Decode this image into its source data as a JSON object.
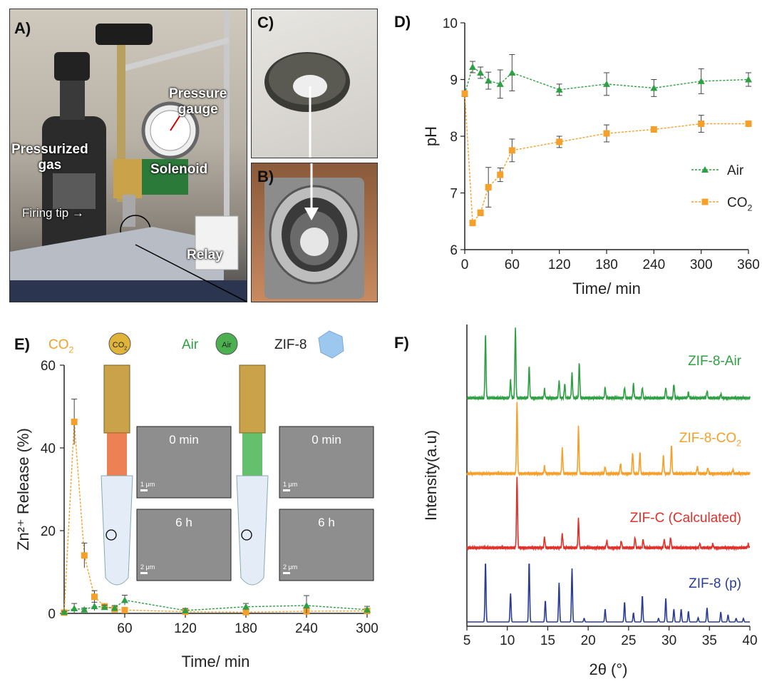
{
  "panels": {
    "A": "A)",
    "B": "B)",
    "C": "C)",
    "D": "D)",
    "E": "E)",
    "F": "F)"
  },
  "photo_a_labels": {
    "pressure_gauge_1": "Pressure",
    "pressure_gauge_2": "gauge",
    "pressurized_1": "Pressurized",
    "pressurized_2": "gas",
    "solenoid": "Solenoid",
    "firing_tip": "Firing tip",
    "relay": "Relay"
  },
  "colors": {
    "air": "#2ea043",
    "co2": "#f5a02a",
    "zif_c": "#e0302a",
    "zif_p": "#2a3c94",
    "zif8_icon": "#9cc8ef"
  },
  "chart_data": [
    {
      "id": "D",
      "type": "line",
      "ylabel": "pH",
      "xlabel": "Time/ min",
      "xlim": [
        0,
        360
      ],
      "ylim": [
        6,
        10
      ],
      "xticks": [
        0,
        60,
        120,
        180,
        240,
        300,
        360
      ],
      "yticks": [
        6,
        7,
        8,
        9,
        10
      ],
      "legend_position": "center-right",
      "series": [
        {
          "name": "Air",
          "marker": "triangle",
          "x": [
            0,
            10,
            20,
            30,
            45,
            60,
            120,
            180,
            240,
            300,
            360
          ],
          "y": [
            8.75,
            9.22,
            9.12,
            8.98,
            8.92,
            9.12,
            8.82,
            8.92,
            8.85,
            8.97,
            9.0
          ],
          "err": [
            0.05,
            0.1,
            0.1,
            0.15,
            0.25,
            0.32,
            0.1,
            0.2,
            0.15,
            0.22,
            0.12
          ]
        },
        {
          "name": "CO2",
          "marker": "square",
          "x": [
            0,
            10,
            20,
            30,
            45,
            60,
            120,
            180,
            240,
            300,
            360
          ],
          "y": [
            8.75,
            6.47,
            6.65,
            7.1,
            7.32,
            7.75,
            7.9,
            8.05,
            8.12,
            8.22,
            8.22
          ],
          "err": [
            0.05,
            0.04,
            0.05,
            0.35,
            0.12,
            0.2,
            0.1,
            0.15,
            0.05,
            0.15,
            0.04
          ]
        }
      ]
    },
    {
      "id": "E",
      "type": "line",
      "ylabel": "Zn²⁺ Release (%)",
      "xlabel": "Time/ min",
      "xlim": [
        0,
        300
      ],
      "ylim": [
        0,
        60
      ],
      "xticks": [
        60,
        120,
        180,
        240,
        300
      ],
      "yticks": [
        0,
        20,
        40,
        60
      ],
      "legend_items": [
        {
          "label": "CO2",
          "icon_text": "CO2"
        },
        {
          "label": "Air",
          "icon_text": "Air"
        },
        {
          "label": "ZIF-8",
          "icon_text": ""
        }
      ],
      "insets": {
        "co2_0": "0 min",
        "co2_6": "6 h",
        "air_0": "0 min",
        "air_6": "6 h",
        "scale_1um": "1 μm",
        "scale_2um": "2 μm"
      },
      "series": [
        {
          "name": "CO2",
          "marker": "square",
          "x": [
            0,
            10,
            20,
            30,
            40,
            50,
            60,
            120,
            180,
            240,
            300
          ],
          "y": [
            0.2,
            46.3,
            14.0,
            4.0,
            1.7,
            1.0,
            0.8,
            0.4,
            0.3,
            0.5,
            0.6
          ],
          "err": [
            0.2,
            5.5,
            3.0,
            1.5,
            0.5,
            0.4,
            0.4,
            0.3,
            0.3,
            0.3,
            0.3
          ]
        },
        {
          "name": "Air",
          "marker": "triangle",
          "x": [
            0,
            10,
            20,
            30,
            40,
            50,
            60,
            120,
            180,
            240,
            300
          ],
          "y": [
            0.3,
            1.2,
            0.9,
            1.7,
            1.5,
            1.3,
            3.2,
            0.7,
            1.6,
            1.9,
            0.9
          ],
          "err": [
            0.2,
            1.2,
            0.4,
            1.0,
            0.5,
            0.6,
            1.2,
            0.5,
            0.8,
            2.4,
            0.8
          ]
        }
      ]
    },
    {
      "id": "F",
      "type": "line",
      "ylabel": "Intensity(a.u)",
      "xlabel": "2θ (°)",
      "xlim": [
        5,
        40
      ],
      "xticks": [
        5,
        10,
        15,
        20,
        25,
        30,
        35,
        40
      ],
      "series": [
        {
          "name": "ZIF-8-Air",
          "peaks": [
            [
              7.3,
              0.9
            ],
            [
              10.4,
              0.25
            ],
            [
              11.0,
              1.0
            ],
            [
              12.7,
              0.45
            ],
            [
              14.6,
              0.12
            ],
            [
              16.4,
              0.25
            ],
            [
              17.1,
              0.2
            ],
            [
              18.0,
              0.35
            ],
            [
              18.9,
              0.5
            ],
            [
              22.1,
              0.15
            ],
            [
              24.5,
              0.15
            ],
            [
              25.6,
              0.2
            ],
            [
              26.7,
              0.15
            ],
            [
              29.6,
              0.15
            ],
            [
              30.6,
              0.2
            ],
            [
              32.4,
              0.08
            ],
            [
              34.7,
              0.1
            ],
            [
              36.4,
              0.06
            ]
          ]
        },
        {
          "name": "ZIF-8-CO2",
          "peaks": [
            [
              11.2,
              1.0
            ],
            [
              14.6,
              0.1
            ],
            [
              16.8,
              0.35
            ],
            [
              18.8,
              0.65
            ],
            [
              22.1,
              0.1
            ],
            [
              24.0,
              0.15
            ],
            [
              25.5,
              0.3
            ],
            [
              26.4,
              0.3
            ],
            [
              29.3,
              0.25
            ],
            [
              30.3,
              0.4
            ],
            [
              33.5,
              0.1
            ],
            [
              34.8,
              0.08
            ],
            [
              37.9,
              0.06
            ]
          ]
        },
        {
          "name": "ZIF-C (Calculated)",
          "peaks": [
            [
              11.2,
              1.0
            ],
            [
              14.6,
              0.15
            ],
            [
              16.8,
              0.2
            ],
            [
              18.8,
              0.4
            ],
            [
              22.3,
              0.1
            ],
            [
              24.1,
              0.1
            ],
            [
              25.8,
              0.15
            ],
            [
              26.8,
              0.12
            ],
            [
              29.4,
              0.12
            ],
            [
              30.2,
              0.15
            ],
            [
              33.8,
              0.06
            ],
            [
              35.4,
              0.05
            ],
            [
              39.8,
              0.05
            ]
          ]
        },
        {
          "name": "ZIF-8 (p)",
          "peaks": [
            [
              7.3,
              0.85
            ],
            [
              10.4,
              0.4
            ],
            [
              12.7,
              0.85
            ],
            [
              14.7,
              0.3
            ],
            [
              16.4,
              0.55
            ],
            [
              18.0,
              0.75
            ],
            [
              19.5,
              0.05
            ],
            [
              22.1,
              0.18
            ],
            [
              24.5,
              0.28
            ],
            [
              25.6,
              0.13
            ],
            [
              26.7,
              0.37
            ],
            [
              28.7,
              0.05
            ],
            [
              29.6,
              0.33
            ],
            [
              30.6,
              0.18
            ],
            [
              31.5,
              0.18
            ],
            [
              32.4,
              0.15
            ],
            [
              33.6,
              0.06
            ],
            [
              34.7,
              0.2
            ],
            [
              36.4,
              0.14
            ],
            [
              37.3,
              0.1
            ],
            [
              38.3,
              0.05
            ],
            [
              39.2,
              0.05
            ]
          ]
        }
      ]
    }
  ]
}
